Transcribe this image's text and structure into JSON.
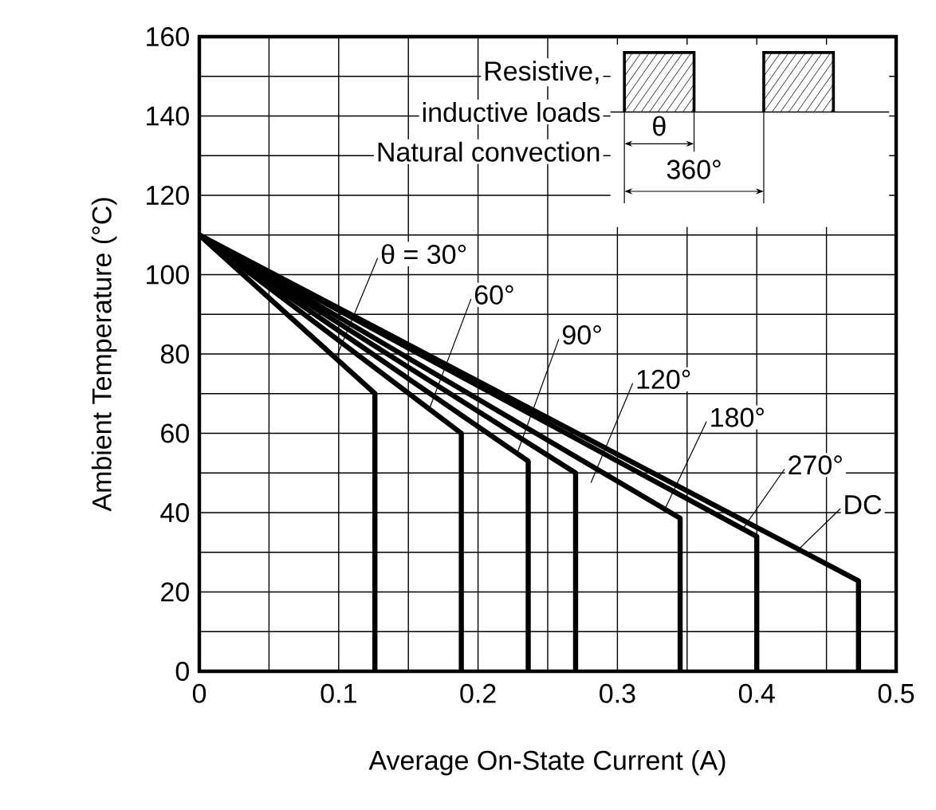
{
  "chart_data": {
    "type": "line",
    "xlabel": "Average On-State Current  (A)",
    "ylabel": "Ambient Temperature  (°C)",
    "xlim": [
      0,
      0.5
    ],
    "ylim": [
      0,
      160
    ],
    "xticks": [
      0,
      0.1,
      0.2,
      0.3,
      0.4,
      0.5
    ],
    "yticks": [
      0,
      20,
      40,
      60,
      80,
      100,
      120,
      140,
      160
    ],
    "grid": true,
    "marker": "none",
    "line_style": "solid",
    "series": [
      {
        "name": "θ = 30°",
        "color": "#000000",
        "x": [
          0,
          0.126,
          0.126
        ],
        "values": [
          110,
          70,
          0
        ]
      },
      {
        "name": "60°",
        "color": "#000000",
        "x": [
          0,
          0.188,
          0.188
        ],
        "values": [
          110,
          60,
          0
        ]
      },
      {
        "name": "90°",
        "color": "#000000",
        "x": [
          0,
          0.236,
          0.236
        ],
        "values": [
          110,
          53,
          0
        ]
      },
      {
        "name": "120°",
        "color": "#000000",
        "x": [
          0,
          0.27,
          0.27
        ],
        "values": [
          110,
          50,
          0
        ]
      },
      {
        "name": "180°",
        "color": "#000000",
        "x": [
          0,
          0.345,
          0.345
        ],
        "values": [
          110,
          38.6,
          0
        ]
      },
      {
        "name": "270°",
        "color": "#000000",
        "x": [
          0,
          0.4,
          0.4
        ],
        "values": [
          110,
          34,
          0
        ]
      },
      {
        "name": "DC",
        "color": "#000000",
        "x": [
          0,
          0.473,
          0.473
        ],
        "values": [
          110,
          22.8,
          0
        ]
      }
    ],
    "annotations": [
      "Resistive,",
      "inductive loads",
      "Natural convection",
      "θ",
      "360°"
    ]
  }
}
